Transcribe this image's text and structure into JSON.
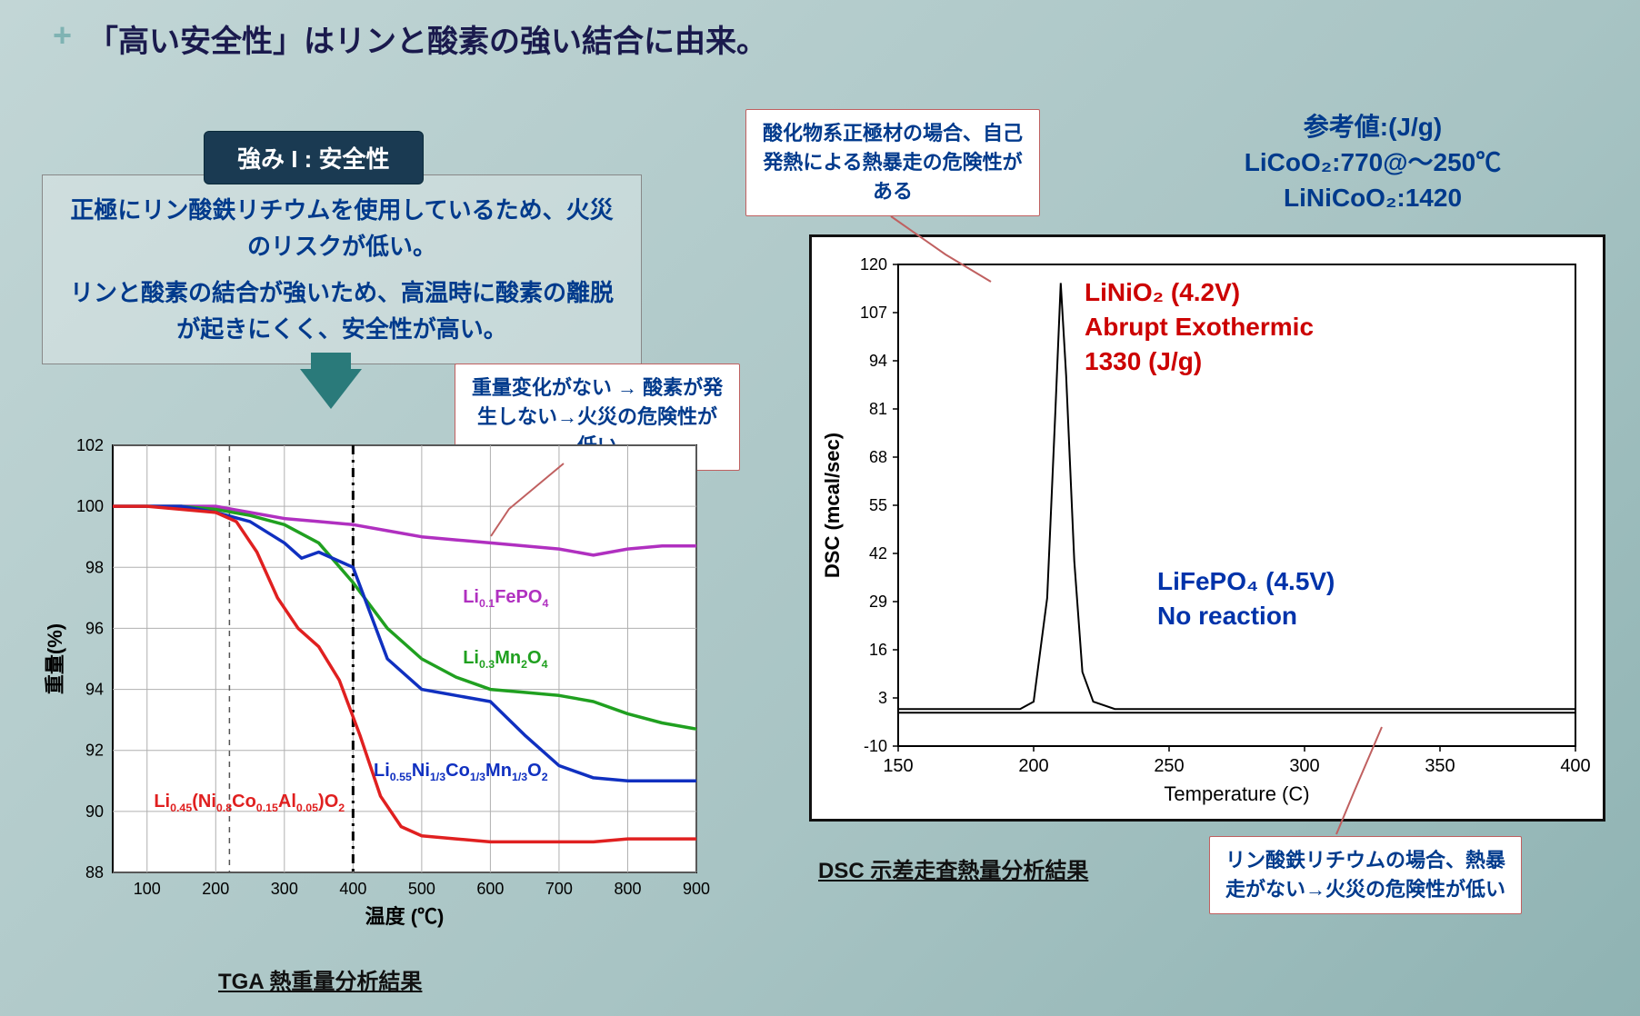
{
  "headline": "「高い安全性」はリンと酸素の強い結合に由来。",
  "badge": "強み I : 安全性",
  "infobox_line1": "正極にリン酸鉄リチウムを使用しているため、火災のリスクが低い。",
  "infobox_line2": "リンと酸素の結合が強いため、高温時に酸素の離脱が起きにくく、安全性が高い。",
  "callout_tga": "重量変化がない → 酸素が発生しない→火災の危険性が低い",
  "callout_oxide": "酸化物系正極材の場合、自己発熱による熱暴走の危険性がある",
  "callout_lfp": "リン酸鉄リチウムの場合、熱暴走がない→火災の危険性が低い",
  "reference": "参考値:(J/g)\nLiCoO₂:770@～250℃\nLiNiCoO₂:1420",
  "caption_tga": "TGA  熱重量分析結果",
  "caption_dsc": "DSC  示差走査熱量分析結果",
  "dsc_red": "LiNiO₂ (4.2V)\nAbrupt Exothermic\n1330 (J/g)",
  "dsc_blue": "LiFePO₄ (4.5V)\nNo reaction",
  "tga_chart": {
    "type": "line",
    "xlabel": "温度 (℃)",
    "ylabel": "重量(%)",
    "xlim": [
      50,
      900
    ],
    "ylim": [
      88,
      102
    ],
    "xtick_start": 100,
    "xtick_step": 100,
    "ytick_start": 88,
    "ytick_step": 2,
    "background_color": "#ffffff",
    "grid_color": "#b0b0b0",
    "vline_dash": 220,
    "vline_dashdot": 400,
    "line_width": 3.5,
    "series": [
      {
        "name": "Li0.1FePO4",
        "label_html": "Li<span class='sub'>0.1</span>FePO<span class='sub'>4</span>",
        "color": "#b030c0",
        "label_x": 560,
        "label_y": 97,
        "points": [
          [
            50,
            100
          ],
          [
            100,
            100
          ],
          [
            150,
            100
          ],
          [
            200,
            100
          ],
          [
            250,
            99.8
          ],
          [
            300,
            99.6
          ],
          [
            350,
            99.5
          ],
          [
            400,
            99.4
          ],
          [
            450,
            99.2
          ],
          [
            500,
            99.0
          ],
          [
            550,
            98.9
          ],
          [
            600,
            98.8
          ],
          [
            650,
            98.7
          ],
          [
            700,
            98.6
          ],
          [
            750,
            98.4
          ],
          [
            800,
            98.6
          ],
          [
            850,
            98.7
          ],
          [
            900,
            98.7
          ]
        ]
      },
      {
        "name": "Li0.3Mn2O4",
        "label_html": "Li<span class='sub'>0.3</span>Mn<span class='sub'>2</span>O<span class='sub'>4</span>",
        "color": "#20a020",
        "label_x": 560,
        "label_y": 95,
        "points": [
          [
            50,
            100
          ],
          [
            100,
            100
          ],
          [
            150,
            100
          ],
          [
            200,
            99.9
          ],
          [
            250,
            99.7
          ],
          [
            300,
            99.4
          ],
          [
            350,
            98.8
          ],
          [
            400,
            97.5
          ],
          [
            450,
            96.0
          ],
          [
            500,
            95.0
          ],
          [
            550,
            94.4
          ],
          [
            600,
            94.0
          ],
          [
            650,
            93.9
          ],
          [
            700,
            93.8
          ],
          [
            750,
            93.6
          ],
          [
            800,
            93.2
          ],
          [
            850,
            92.9
          ],
          [
            900,
            92.7
          ]
        ]
      },
      {
        "name": "Li0.55Ni1/3Co1/3Mn1/3O2",
        "label_html": "Li<span class='sub'>0.55</span>Ni<span class='sub'>1/3</span>Co<span class='sub'>1/3</span>Mn<span class='sub'>1/3</span>O<span class='sub'>2</span>",
        "color": "#1030c0",
        "label_x": 430,
        "label_y": 91.3,
        "points": [
          [
            50,
            100
          ],
          [
            100,
            100
          ],
          [
            150,
            100
          ],
          [
            200,
            99.8
          ],
          [
            250,
            99.5
          ],
          [
            300,
            98.8
          ],
          [
            325,
            98.3
          ],
          [
            350,
            98.5
          ],
          [
            400,
            98.0
          ],
          [
            425,
            96.5
          ],
          [
            450,
            95.0
          ],
          [
            500,
            94.0
          ],
          [
            550,
            93.8
          ],
          [
            600,
            93.6
          ],
          [
            650,
            92.5
          ],
          [
            700,
            91.5
          ],
          [
            750,
            91.1
          ],
          [
            800,
            91.0
          ],
          [
            850,
            91.0
          ],
          [
            900,
            91.0
          ]
        ]
      },
      {
        "name": "Li0.45(Ni0.8Co0.15Al0.05)O2",
        "label_html": "Li<span class='sub'>0.45</span>(Ni<span class='sub'>0.8</span>Co<span class='sub'>0.15</span>Al<span class='sub'>0.05</span>)O<span class='sub'>2</span>",
        "color": "#e02020",
        "label_x": 110,
        "label_y": 90.3,
        "points": [
          [
            50,
            100
          ],
          [
            100,
            100
          ],
          [
            150,
            99.9
          ],
          [
            200,
            99.8
          ],
          [
            230,
            99.5
          ],
          [
            260,
            98.5
          ],
          [
            290,
            97.0
          ],
          [
            320,
            96.0
          ],
          [
            350,
            95.4
          ],
          [
            380,
            94.3
          ],
          [
            410,
            92.5
          ],
          [
            440,
            90.5
          ],
          [
            470,
            89.5
          ],
          [
            500,
            89.2
          ],
          [
            550,
            89.1
          ],
          [
            600,
            89.0
          ],
          [
            650,
            89.0
          ],
          [
            700,
            89.0
          ],
          [
            750,
            89.0
          ],
          [
            800,
            89.1
          ],
          [
            850,
            89.1
          ],
          [
            900,
            89.1
          ]
        ]
      }
    ]
  },
  "dsc_chart": {
    "type": "line",
    "xlabel": "Temperature (C)",
    "ylabel": "DSC (mcal/sec)",
    "xlim": [
      150,
      400
    ],
    "ylim": [
      -10,
      120
    ],
    "xtick_start": 150,
    "xtick_step": 50,
    "yticks": [
      -10,
      3,
      16,
      29,
      42,
      55,
      68,
      81,
      94,
      107,
      120
    ],
    "background_color": "#ffffff",
    "series": [
      {
        "name": "LiNiO2",
        "color": "#000000",
        "line_width": 2,
        "points": [
          [
            150,
            0
          ],
          [
            195,
            0
          ],
          [
            200,
            2
          ],
          [
            205,
            30
          ],
          [
            208,
            80
          ],
          [
            210,
            115
          ],
          [
            212,
            90
          ],
          [
            215,
            40
          ],
          [
            218,
            10
          ],
          [
            222,
            2
          ],
          [
            230,
            0
          ],
          [
            260,
            0
          ],
          [
            300,
            0
          ],
          [
            350,
            0
          ],
          [
            400,
            0
          ]
        ]
      },
      {
        "name": "LiFePO4",
        "color": "#000000",
        "line_width": 2,
        "points": [
          [
            150,
            -1
          ],
          [
            200,
            -1
          ],
          [
            250,
            -1
          ],
          [
            300,
            -1
          ],
          [
            350,
            -1
          ],
          [
            400,
            -1
          ]
        ]
      }
    ]
  }
}
